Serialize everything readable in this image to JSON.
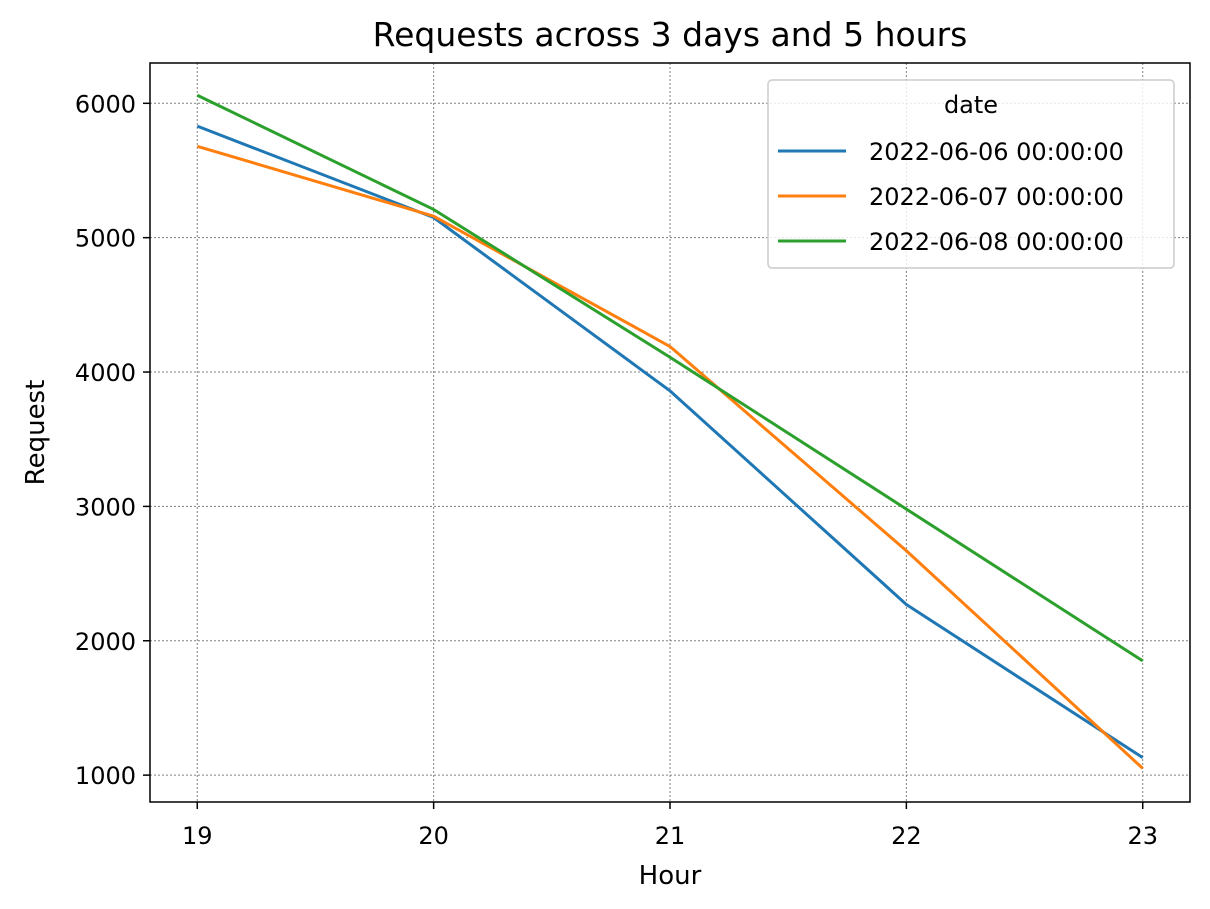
{
  "chart_data": {
    "type": "line",
    "title": "Requests across 3 days and 5 hours",
    "xlabel": "Hour",
    "ylabel": "Request",
    "x": [
      19,
      20,
      21,
      22,
      23
    ],
    "xlim": [
      18.8,
      23.2
    ],
    "ylim": [
      800,
      6300
    ],
    "xticks": [
      "19",
      "20",
      "21",
      "22",
      "23"
    ],
    "yticks": [
      1000,
      2000,
      3000,
      4000,
      5000,
      6000
    ],
    "ytick_labels": [
      "1000",
      "2000",
      "3000",
      "4000",
      "5000",
      "6000"
    ],
    "grid": true,
    "legend": {
      "title": "date",
      "placement": "top-right"
    },
    "series": [
      {
        "name": "2022-06-06 00:00:00",
        "color": "#1f77b4",
        "values": [
          5830,
          5150,
          3860,
          2270,
          1130
        ]
      },
      {
        "name": "2022-06-07 00:00:00",
        "color": "#ff7f0e",
        "values": [
          5680,
          5160,
          4190,
          2670,
          1050
        ]
      },
      {
        "name": "2022-06-08 00:00:00",
        "color": "#2ca02c",
        "values": [
          6060,
          5210,
          4110,
          2980,
          1850
        ]
      }
    ]
  }
}
